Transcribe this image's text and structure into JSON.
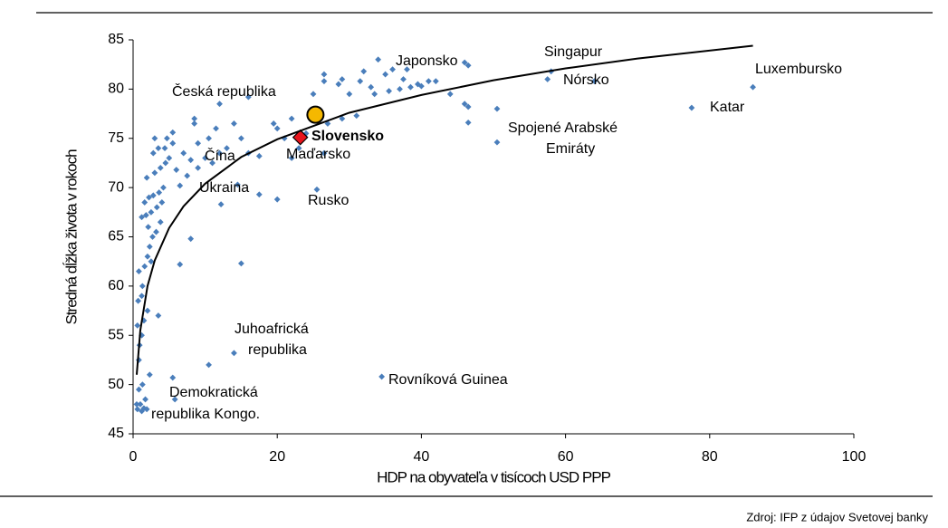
{
  "chart_data": {
    "type": "scatter",
    "xlabel": "HDP na obyvateľa v tisícoch USD PPP",
    "ylabel": "Stredná dĺžka života v rokoch",
    "source": "Zdroj: IFP z údajov Svetovej banky",
    "xlim": [
      0,
      100
    ],
    "ylim": [
      45,
      85
    ],
    "xticks": [
      0,
      20,
      40,
      60,
      80,
      100
    ],
    "yticks": [
      45,
      50,
      55,
      60,
      65,
      70,
      75,
      80,
      85
    ],
    "grid": false,
    "series": [
      {
        "color": "#4a7ebb",
        "marker": "diamond",
        "x": [
          0.5,
          0.6,
          0.8,
          1,
          1.2,
          1.5,
          1.7,
          1.9,
          1.3,
          2.3,
          0.8,
          0.9,
          1.2,
          0.6,
          1.5,
          0.7,
          1.2,
          2,
          1.3,
          0.8,
          1.6,
          2,
          2.3,
          2.7,
          3.2,
          2.1,
          3.8,
          1.2,
          1.8,
          2.5,
          3.3,
          4,
          1.6,
          2.2,
          2.8,
          3.6,
          4.2,
          1.9,
          3,
          3.8,
          4.5,
          5,
          2.8,
          3.5,
          4.4,
          5.5,
          3,
          4.7,
          5.5,
          2.5,
          3.5,
          5.5,
          5.8,
          10.5,
          14,
          6.5,
          8,
          15,
          34.5,
          20,
          12.2,
          14.5,
          17.5,
          25.5,
          6.5,
          7.5,
          8,
          7,
          6,
          9,
          10,
          11,
          9,
          10.5,
          12,
          13,
          11.5,
          8.5,
          8.5,
          12,
          14,
          15,
          16,
          17.5,
          19.5,
          20,
          21,
          22,
          23,
          24,
          26.5,
          25,
          26.5,
          26.5,
          28.5,
          29,
          30,
          31.5,
          32,
          33,
          34,
          35,
          36,
          37,
          38.5,
          37.5,
          39.5,
          40,
          38,
          41,
          42,
          46,
          46.5,
          46.5,
          46,
          46.5,
          50.5,
          50.5,
          57.5,
          58,
          64,
          77.5,
          86,
          16,
          22,
          27,
          29,
          31,
          33.5,
          35.5,
          44
        ],
        "values": [
          48,
          47.5,
          49.5,
          48,
          47.3,
          47.6,
          48.5,
          47.5,
          50,
          51,
          52.5,
          54,
          55,
          56,
          56.5,
          58.5,
          59,
          57.5,
          60,
          61.5,
          62,
          63,
          64,
          65,
          65.5,
          66,
          66.5,
          67,
          67.2,
          67.5,
          68,
          68.5,
          68.5,
          69,
          69.2,
          69.5,
          70,
          71,
          71.5,
          72,
          72.5,
          73,
          73.5,
          74,
          74,
          74.5,
          75,
          75,
          75.6,
          62.5,
          57,
          50.7,
          48.5,
          52,
          53.2,
          62.2,
          64.8,
          62.3,
          50.8,
          68.8,
          68.3,
          70.3,
          69.3,
          69.8,
          70.2,
          71.2,
          72.8,
          73.5,
          71.8,
          72,
          73,
          72.5,
          74.5,
          75,
          73.5,
          74,
          76,
          76.5,
          77,
          78.5,
          76.5,
          75,
          73.5,
          73.2,
          76.5,
          76,
          75,
          73,
          74,
          75.5,
          73.5,
          79.5,
          80.8,
          81.5,
          80.5,
          81,
          79.5,
          80.8,
          81.8,
          80.2,
          83,
          81.5,
          82,
          80,
          80.2,
          81,
          80.5,
          80.3,
          82,
          80.8,
          80.8,
          78.5,
          78.2,
          76.6,
          82.7,
          82.4,
          78,
          74.6,
          81,
          81.8,
          80.8,
          78.1,
          80.2,
          79.2,
          77,
          76.5,
          77,
          77.3,
          79.5,
          79.8,
          79.5
        ]
      },
      {
        "color": "#e8141c",
        "marker": "diamond",
        "x": [
          23.2
        ],
        "values": [
          75.1
        ]
      },
      {
        "color": "#f5b800",
        "marker": "circle",
        "x": [
          25.3
        ],
        "values": [
          77.4
        ]
      }
    ],
    "trendline": {
      "color": "#000000",
      "x": [
        0.5,
        1,
        2,
        3,
        5,
        7,
        10,
        15,
        20,
        30,
        40,
        50,
        60,
        70,
        86
      ],
      "values": [
        51.0,
        55.5,
        60.0,
        62.6,
        65.9,
        68.1,
        70.4,
        73.1,
        74.9,
        77.6,
        79.4,
        80.9,
        82.1,
        83.1,
        84.4
      ]
    },
    "annotations": [
      "Česká republika",
      "Japonsko",
      "Singapur",
      "Nórsko",
      "Luxembursko",
      "Katar",
      "Spojené Arabské",
      "Emiráty",
      "Slovensko",
      "Maďarsko",
      "Čína",
      "Ukraina",
      "Rusko",
      "Juhoafrická",
      "republika",
      "Rovníková Guinea",
      "Demokratická",
      "republika Kongo."
    ]
  }
}
